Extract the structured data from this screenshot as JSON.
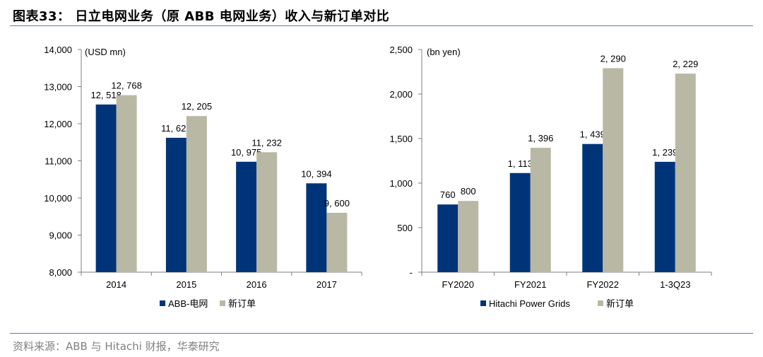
{
  "figure": {
    "title": "图表33： 日立电网业务（原 ABB 电网业务）收入与新订单对比",
    "source": "资料来源：ABB 与 Hitachi 财报，华泰研究"
  },
  "colors": {
    "series1": "#003478",
    "series2": "#b9b8a4",
    "axis": "#7f7f7f",
    "rule": "#5b7fa6"
  },
  "chart_data": [
    {
      "type": "bar",
      "unit_label": "(USD mn)",
      "categories": [
        "2014",
        "2015",
        "2016",
        "2017"
      ],
      "ylim": [
        8000,
        14000
      ],
      "yticks": [
        8000,
        9000,
        10000,
        11000,
        12000,
        13000,
        14000
      ],
      "ytick_labels": [
        "8,000",
        "9,000",
        "10,000",
        "11,000",
        "12,000",
        "13,000",
        "14,000"
      ],
      "grid": false,
      "legend_position": "bottom",
      "series": [
        {
          "name": "ABB-电网",
          "values": [
            12518,
            11621,
            10975,
            10394
          ],
          "labels": [
            "12, 518",
            "11, 621",
            "10, 975",
            "10, 394"
          ]
        },
        {
          "name": "新订单",
          "values": [
            12768,
            12205,
            11232,
            9600
          ],
          "labels": [
            "12, 768",
            "12, 205",
            "11, 232",
            "9, 600"
          ]
        }
      ]
    },
    {
      "type": "bar",
      "unit_label": "(bn yen)",
      "categories": [
        "FY2020",
        "FY2021",
        "FY2022",
        "1-3Q23"
      ],
      "ylim": [
        0,
        2500
      ],
      "yticks": [
        0,
        500,
        1000,
        1500,
        2000,
        2500
      ],
      "ytick_labels": [
        "-",
        "500",
        "1,000",
        "1,500",
        "2,000",
        "2,500"
      ],
      "grid": false,
      "legend_position": "bottom",
      "series": [
        {
          "name": "Hitachi Power Grids",
          "values": [
            760,
            1113,
            1439,
            1239
          ],
          "labels": [
            "760",
            "1, 113",
            "1, 439",
            "1, 239"
          ]
        },
        {
          "name": "新订单",
          "values": [
            800,
            1396,
            2290,
            2229
          ],
          "labels": [
            "800",
            "1, 396",
            "2, 290",
            "2, 229"
          ]
        }
      ]
    }
  ]
}
